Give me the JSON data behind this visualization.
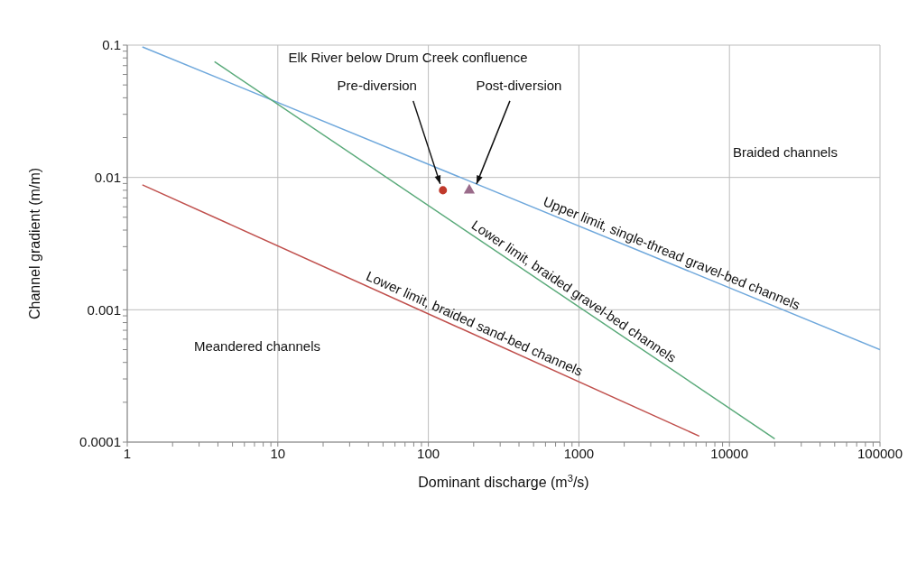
{
  "chart_data": {
    "type": "line",
    "xlabel": "Dominant discharge (m$^{3}$/s)",
    "ylabel": "Channel gradient (m/m)",
    "log": "xy",
    "grid": true,
    "xlim": [
      1,
      100000
    ],
    "ylim": [
      0.0001,
      0.1
    ],
    "xticks": [
      1,
      {
        "value": 2,
        "label": null
      },
      {
        "value": 3,
        "label": null
      },
      {
        "value": 4,
        "label": null
      },
      {
        "value": 5,
        "label": null
      },
      {
        "value": 6,
        "label": null
      },
      {
        "value": 7,
        "label": null
      },
      {
        "value": 8,
        "label": null
      },
      {
        "value": 9,
        "label": null
      },
      10,
      {
        "value": 20,
        "label": null
      },
      {
        "value": 30,
        "label": null
      },
      {
        "value": 40,
        "label": null
      },
      {
        "value": 50,
        "label": null
      },
      {
        "value": 60,
        "label": null
      },
      {
        "value": 70,
        "label": null
      },
      {
        "value": 80,
        "label": null
      },
      {
        "value": 90,
        "label": null
      },
      100,
      {
        "value": 200,
        "label": null
      },
      {
        "value": 300,
        "label": null
      },
      {
        "value": 400,
        "label": null
      },
      {
        "value": 500,
        "label": null
      },
      {
        "value": 600,
        "label": null
      },
      {
        "value": 700,
        "label": null
      },
      {
        "value": 800,
        "label": null
      },
      {
        "value": 900,
        "label": null
      },
      1000,
      {
        "value": 2000,
        "label": null
      },
      {
        "value": 3000,
        "label": null
      },
      {
        "value": 4000,
        "label": null
      },
      {
        "value": 5000,
        "label": null
      },
      {
        "value": 6000,
        "label": null
      },
      {
        "value": 7000,
        "label": null
      },
      {
        "value": 8000,
        "label": null
      },
      {
        "value": 9000,
        "label": null
      },
      10000,
      {
        "value": 20000,
        "label": null
      },
      {
        "value": 30000,
        "label": null
      },
      {
        "value": 40000,
        "label": null
      },
      {
        "value": 50000,
        "label": null
      },
      {
        "value": 60000,
        "label": null
      },
      {
        "value": 70000,
        "label": null
      },
      {
        "value": 80000,
        "label": null
      },
      {
        "value": 90000,
        "label": null
      },
      100000
    ],
    "yticks": [
      0.0001,
      {
        "value": 0.0002,
        "label": null
      },
      {
        "value": 0.0003,
        "label": null
      },
      {
        "value": 0.0004,
        "label": null
      },
      {
        "value": 0.0005,
        "label": null
      },
      {
        "value": 0.0006,
        "label": null
      },
      {
        "value": 0.0007,
        "label": null
      },
      {
        "value": 0.0008,
        "label": null
      },
      {
        "value": 0.0009,
        "label": null
      },
      0.001,
      {
        "value": 0.002,
        "label": null
      },
      {
        "value": 0.003,
        "label": null
      },
      {
        "value": 0.004,
        "label": null
      },
      {
        "value": 0.005,
        "label": null
      },
      {
        "value": 0.006,
        "label": null
      },
      {
        "value": 0.007,
        "label": null
      },
      {
        "value": 0.008,
        "label": null
      },
      {
        "value": 0.009,
        "label": null
      },
      0.01,
      {
        "value": 0.02,
        "label": null
      },
      {
        "value": 0.03,
        "label": null
      },
      {
        "value": 0.04,
        "label": null
      },
      {
        "value": 0.05,
        "label": null
      },
      {
        "value": 0.06,
        "label": null
      },
      {
        "value": 0.07,
        "label": null
      },
      {
        "value": 0.08,
        "label": null
      },
      {
        "value": 0.09,
        "label": null
      },
      0.1
    ],
    "series": [
      {
        "name": "Upper limit, single-thread gravel-bed channels",
        "color": "#6fa8dc",
        "x": [
          1.26,
          100000
        ],
        "values": [
          0.097,
          0.0005
        ]
      },
      {
        "name": "Lower limit, braided gravel-bed channels",
        "color": "#5aaa7a",
        "x": [
          3.8,
          20000
        ],
        "values": [
          0.075,
          0.000106
        ]
      },
      {
        "name": "Lower limit, braided sand-bed channels",
        "color": "#c0504d",
        "x": [
          1.26,
          6300
        ],
        "values": [
          0.0088,
          0.000111
        ]
      },
      {
        "name": "Pre-diversion",
        "type": "scatter",
        "marker": "circle",
        "color": "#c0392b",
        "x": [
          125
        ],
        "values": [
          0.008
        ]
      },
      {
        "name": "Post-diversion",
        "type": "scatter",
        "marker": "triangle",
        "color": "#9a6b8a",
        "x": [
          187
        ],
        "values": [
          0.008
        ]
      }
    ],
    "annotations": [
      "Elk River below Drum Creek confluence",
      "Braided channels",
      "Meandered channels"
    ]
  }
}
